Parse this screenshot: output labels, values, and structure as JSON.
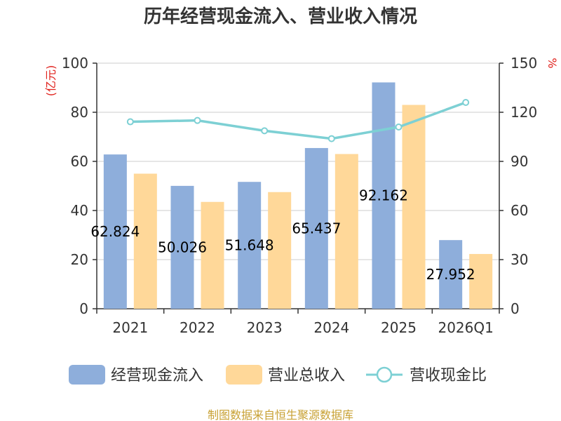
{
  "chart_data": {
    "type": "bar",
    "title": "历年经营现金流入、营业收入情况",
    "categories": [
      "2021",
      "2022",
      "2023",
      "2024",
      "2025",
      "2026Q1"
    ],
    "series": [
      {
        "name": "经营现金流入",
        "type": "bar",
        "axis": "left",
        "color": "#8eaedb",
        "values": [
          62.82,
          50.03,
          51.65,
          65.44,
          92.16,
          27.95
        ]
      },
      {
        "name": "营业总收入",
        "type": "bar",
        "axis": "left",
        "color": "#ffd899",
        "values": [
          55,
          43.5,
          47.5,
          63,
          83,
          22.3
        ]
      },
      {
        "name": "营收现金比",
        "type": "line",
        "axis": "right",
        "color": "#7dd0d4",
        "values": [
          114.2,
          115,
          108.7,
          103.9,
          111,
          126
        ]
      }
    ],
    "bar_labels": [
      "62.824",
      "50.026",
      "51.648",
      "65.437",
      "92.162",
      "27.952"
    ],
    "y_left": {
      "unit": "(亿元)",
      "ylim": [
        0,
        100
      ],
      "ticks": [
        "0",
        "20",
        "40",
        "60",
        "80",
        "100"
      ]
    },
    "y_right": {
      "unit": "%",
      "ylim": [
        0,
        150
      ],
      "ticks": [
        "0",
        "30",
        "60",
        "90",
        "120",
        "150"
      ]
    },
    "grid": true,
    "legend": {
      "position": "bottom"
    },
    "source": "制图数据来自恒生聚源数据库"
  }
}
